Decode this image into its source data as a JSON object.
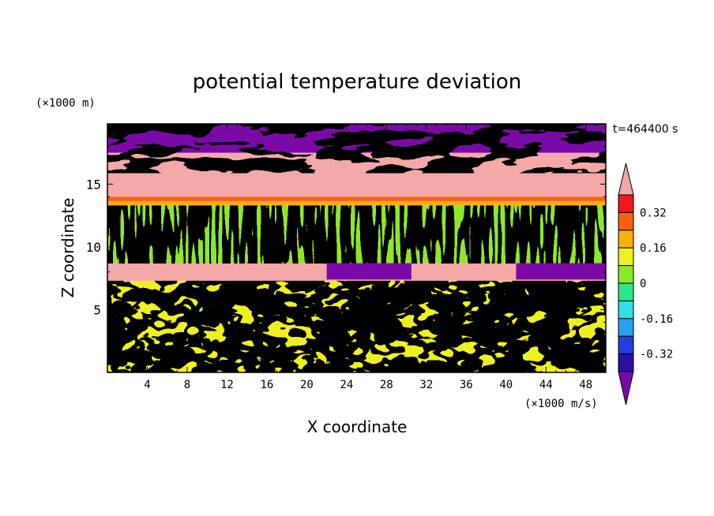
{
  "chart_data": {
    "type": "heatmap",
    "title": "potential temperature deviation",
    "xlabel": "X coordinate",
    "ylabel": "Z coordinate",
    "x_unit": "(×1000 m/s)",
    "y_unit": "(×1000 m)",
    "time_label": "t=464400 s",
    "xlim": [
      0,
      50
    ],
    "ylim": [
      0,
      19.8
    ],
    "x_ticks": [
      4,
      8,
      12,
      16,
      20,
      24,
      28,
      32,
      36,
      40,
      44,
      48
    ],
    "y_ticks": [
      5,
      10,
      15
    ],
    "colorbar": {
      "levels": [
        -0.4,
        -0.32,
        -0.24,
        -0.16,
        -0.08,
        0,
        0.08,
        0.16,
        0.24,
        0.32,
        0.4
      ],
      "tick_labels": [
        "0.32",
        "0.16",
        "0",
        "-0.16",
        "-0.32"
      ],
      "colors": [
        "#7a0aa8",
        "#2b0fa0",
        "#1f3fe0",
        "#2aa0f0",
        "#30e0e8",
        "#2ae88a",
        "#8ee82a",
        "#f0f020",
        "#f8b010",
        "#f86010",
        "#f01818",
        "#f4a8a8"
      ]
    },
    "layers": [
      {
        "z_range": [
          17.5,
          19.8
        ],
        "description_values": "mixed purple and pink, values mostly below -0.4 and above 0.4"
      },
      {
        "z_range": [
          14,
          17.5
        ],
        "value": 0.4
      },
      {
        "z_range": [
          13.3,
          14
        ],
        "value": 0.3
      },
      {
        "z_range": [
          8.7,
          13.3
        ],
        "value": 0.0
      },
      {
        "z_range": [
          7.3,
          8.7
        ],
        "value": 0.4
      },
      {
        "z_range": [
          0,
          7.3
        ],
        "description_values": "turbulent mixture from -0.4 to 0.4"
      }
    ]
  }
}
